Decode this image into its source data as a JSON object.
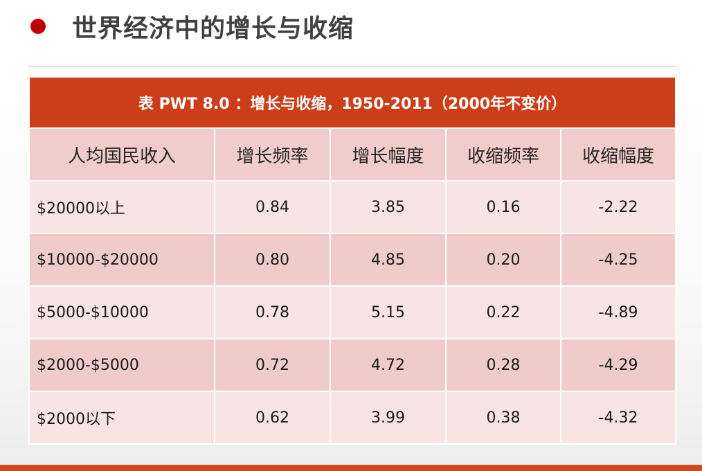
{
  "slide": {
    "title": "世界经济中的增长与收缩",
    "accent_color": "#c00000",
    "bar_color": "#d2471e"
  },
  "table": {
    "caption": "表 PWT 8.0 ：增长与收缩，1950-2011（2000年不变价）",
    "header_color": "#cc3e1a",
    "columns": [
      "人均国民收入",
      "增长频率",
      "增长幅度",
      "收缩频率",
      "收缩幅度"
    ],
    "rows": [
      [
        "$20000以上",
        "0.84",
        "3.85",
        "0.16",
        "-2.22"
      ],
      [
        "$10000-$20000",
        "0.80",
        "4.85",
        "0.20",
        "-4.25"
      ],
      [
        "$5000-$10000",
        "0.78",
        "5.15",
        "0.22",
        "-4.89"
      ],
      [
        "$2000-$5000",
        "0.72",
        "4.72",
        "0.28",
        "-4.29"
      ],
      [
        "$2000以下",
        "0.62",
        "3.99",
        "0.38",
        "-4.32"
      ]
    ]
  }
}
